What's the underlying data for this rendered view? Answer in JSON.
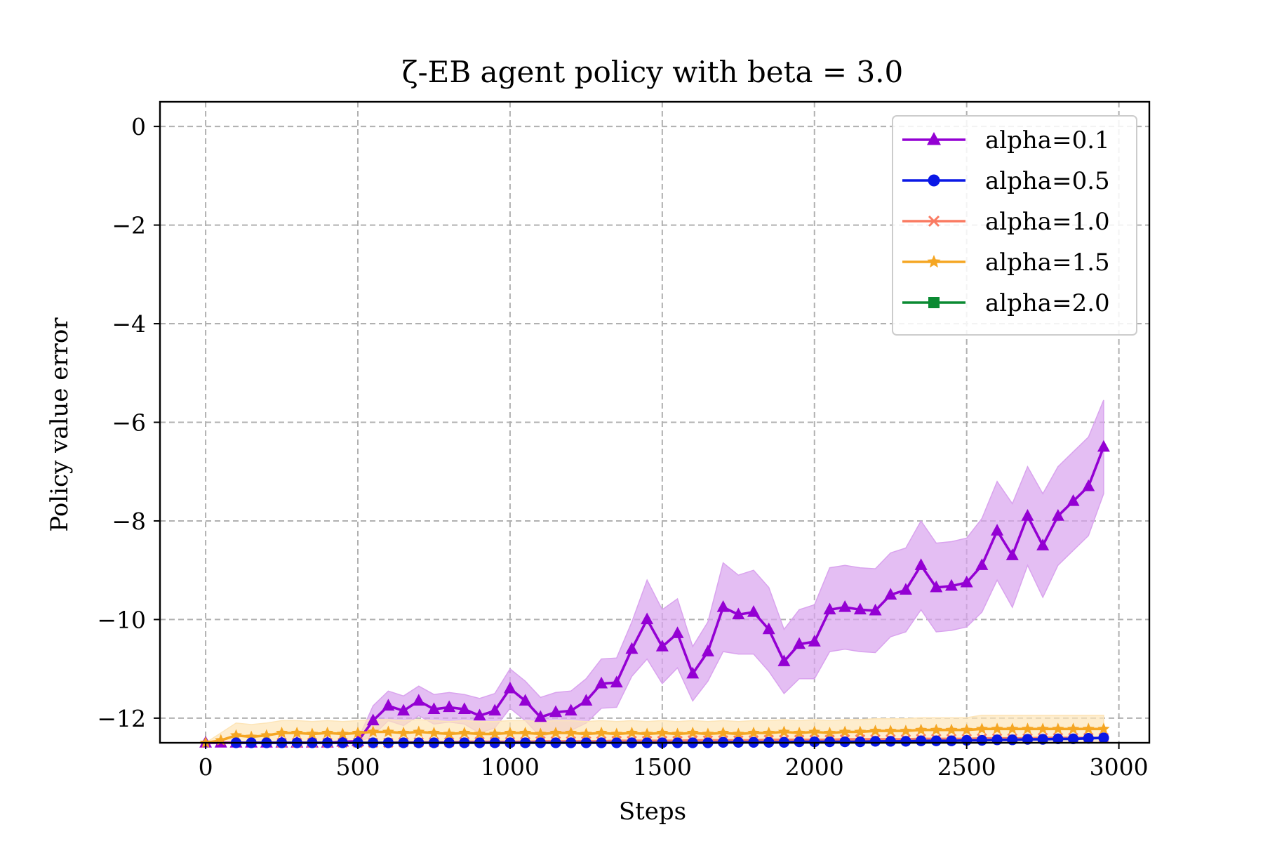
{
  "chart_data": {
    "type": "line",
    "title": "ζ-EB agent policy with beta = 3.0",
    "xlabel": "Steps",
    "ylabel": "Policy value error",
    "xlim": [
      -150,
      3100
    ],
    "ylim": [
      -12.5,
      0.5
    ],
    "xticks": [
      0,
      500,
      1000,
      1500,
      2000,
      2500,
      3000
    ],
    "xtick_labels": [
      "0",
      "500",
      "1000",
      "1500",
      "2000",
      "2500",
      "3000"
    ],
    "yticks": [
      0,
      -2,
      -4,
      -6,
      -8,
      -10,
      -12
    ],
    "ytick_labels": [
      "0",
      "−2",
      "−4",
      "−6",
      "−8",
      "−10",
      "−12"
    ],
    "grid": true,
    "legend_position": "top-right",
    "series": [
      {
        "name": "alpha=0.1",
        "color": "#9400D3",
        "marker": "triangle",
        "band_color": "#d9a3ee",
        "x": [
          0,
          50,
          100,
          150,
          200,
          250,
          300,
          350,
          400,
          450,
          500,
          550,
          600,
          650,
          700,
          750,
          800,
          850,
          900,
          950,
          1000,
          1050,
          1100,
          1150,
          1200,
          1250,
          1300,
          1350,
          1400,
          1450,
          1500,
          1550,
          1600,
          1650,
          1700,
          1750,
          1800,
          1850,
          1900,
          1950,
          2000,
          2050,
          2100,
          2150,
          2200,
          2250,
          2300,
          2350,
          2400,
          2450,
          2500,
          2550,
          2600,
          2650,
          2700,
          2750,
          2800,
          2850,
          2900,
          2950
        ],
        "values": [
          -12.55,
          -12.55,
          -12.55,
          -12.55,
          -12.55,
          -12.55,
          -12.5,
          -12.5,
          -12.5,
          -12.48,
          -12.47,
          -12.05,
          -11.75,
          -11.85,
          -11.65,
          -11.82,
          -11.78,
          -11.82,
          -11.95,
          -11.85,
          -11.4,
          -11.65,
          -11.98,
          -11.88,
          -11.85,
          -11.65,
          -11.3,
          -11.28,
          -10.6,
          -10.0,
          -10.55,
          -10.28,
          -11.1,
          -10.65,
          -9.75,
          -9.9,
          -9.85,
          -10.2,
          -10.85,
          -10.5,
          -10.45,
          -9.8,
          -9.75,
          -9.8,
          -9.82,
          -9.5,
          -9.4,
          -8.9,
          -9.35,
          -9.32,
          -9.25,
          -8.9,
          -8.2,
          -8.7,
          -7.9,
          -8.5,
          -7.9,
          -7.6,
          -7.3,
          -6.5
        ],
        "band_half_width": [
          0,
          0,
          0,
          0,
          0,
          0,
          0,
          0,
          0,
          0,
          0.03,
          0.3,
          0.3,
          0.3,
          0.3,
          0.3,
          0.3,
          0.3,
          0.35,
          0.35,
          0.4,
          0.4,
          0.4,
          0.4,
          0.4,
          0.45,
          0.5,
          0.5,
          0.55,
          0.8,
          0.75,
          0.7,
          0.55,
          0.6,
          0.9,
          0.8,
          0.85,
          0.85,
          0.65,
          0.7,
          0.75,
          0.85,
          0.85,
          0.85,
          0.85,
          0.85,
          0.85,
          0.9,
          0.9,
          0.9,
          0.9,
          0.95,
          1.0,
          1.05,
          1.0,
          1.05,
          1.0,
          1.0,
          1.0,
          0.95
        ]
      },
      {
        "name": "alpha=0.5",
        "color": "#0a18e6",
        "marker": "circle",
        "x": [
          100,
          150,
          200,
          250,
          300,
          350,
          400,
          450,
          500,
          550,
          600,
          650,
          700,
          750,
          800,
          850,
          900,
          950,
          1000,
          1050,
          1100,
          1150,
          1200,
          1250,
          1300,
          1350,
          1400,
          1450,
          1500,
          1550,
          1600,
          1650,
          1700,
          1750,
          1800,
          1850,
          1900,
          1950,
          2000,
          2050,
          2100,
          2150,
          2200,
          2250,
          2300,
          2350,
          2400,
          2450,
          2500,
          2550,
          2600,
          2650,
          2700,
          2750,
          2800,
          2850,
          2900,
          2950
        ],
        "values": [
          -12.55,
          -12.55,
          -12.54,
          -12.54,
          -12.54,
          -12.53,
          -12.53,
          -12.53,
          -12.53,
          -12.53,
          -12.52,
          -12.52,
          -12.52,
          -12.52,
          -12.52,
          -12.52,
          -12.51,
          -12.51,
          -12.51,
          -12.51,
          -12.51,
          -12.51,
          -12.51,
          -12.5,
          -12.5,
          -12.5,
          -12.5,
          -12.5,
          -12.5,
          -12.5,
          -12.5,
          -12.5,
          -12.49,
          -12.49,
          -12.49,
          -12.49,
          -12.49,
          -12.48,
          -12.48,
          -12.48,
          -12.48,
          -12.48,
          -12.47,
          -12.47,
          -12.47,
          -12.46,
          -12.46,
          -12.46,
          -12.45,
          -12.45,
          -12.44,
          -12.44,
          -12.43,
          -12.43,
          -12.42,
          -12.42,
          -12.41,
          -12.4
        ]
      },
      {
        "name": "alpha=1.0",
        "color": "#fa7b62",
        "marker": "x",
        "x": [
          250,
          300,
          350,
          400,
          450,
          500,
          550,
          600,
          650,
          700,
          750,
          800,
          850,
          900,
          950,
          1000,
          1050,
          1100,
          1150,
          1200,
          1250,
          1300,
          1350,
          1400,
          1450,
          1500,
          1550,
          1600,
          1650,
          1700,
          1750,
          1800,
          1850,
          1900,
          1950,
          2000,
          2050,
          2100,
          2150,
          2200,
          2250,
          2300,
          2350,
          2400,
          2450,
          2500,
          2550,
          2600,
          2650,
          2700,
          2750,
          2800,
          2850,
          2900,
          2950
        ],
        "values": [
          -12.53,
          -12.52,
          -12.52,
          -12.51,
          -12.51,
          -12.5,
          -12.5,
          -12.5,
          -12.49,
          -12.49,
          -12.49,
          -12.49,
          -12.48,
          -12.48,
          -12.48,
          -12.48,
          -12.48,
          -12.47,
          -12.47,
          -12.47,
          -12.47,
          -12.47,
          -12.46,
          -12.46,
          -12.46,
          -12.46,
          -12.46,
          -12.45,
          -12.45,
          -12.45,
          -12.45,
          -12.45,
          -12.44,
          -12.44,
          -12.44,
          -12.44,
          -12.44,
          -12.43,
          -12.43,
          -12.43,
          -12.43,
          -12.43,
          -12.42,
          -12.42,
          -12.42,
          -12.42,
          -12.41,
          -12.41,
          -12.41,
          -12.41,
          -12.4,
          -12.4,
          -12.4,
          -12.4,
          -12.4
        ]
      },
      {
        "name": "alpha=1.5",
        "color": "#f5a623",
        "marker": "star",
        "band_color": "#fde5b8",
        "x": [
          0,
          50,
          100,
          150,
          200,
          250,
          300,
          350,
          400,
          450,
          500,
          550,
          600,
          650,
          700,
          750,
          800,
          850,
          900,
          950,
          1000,
          1050,
          1100,
          1150,
          1200,
          1250,
          1300,
          1350,
          1400,
          1450,
          1500,
          1550,
          1600,
          1650,
          1700,
          1750,
          1800,
          1850,
          1900,
          1950,
          2000,
          2050,
          2100,
          2150,
          2200,
          2250,
          2300,
          2350,
          2400,
          2450,
          2500,
          2550,
          2600,
          2650,
          2700,
          2750,
          2800,
          2850,
          2900,
          2950
        ],
        "values": [
          -12.55,
          -12.45,
          -12.35,
          -12.38,
          -12.35,
          -12.3,
          -12.3,
          -12.32,
          -12.3,
          -12.32,
          -12.3,
          -12.28,
          -12.28,
          -12.3,
          -12.28,
          -12.3,
          -12.32,
          -12.3,
          -12.32,
          -12.32,
          -12.3,
          -12.3,
          -12.32,
          -12.3,
          -12.3,
          -12.32,
          -12.3,
          -12.32,
          -12.3,
          -12.32,
          -12.3,
          -12.32,
          -12.3,
          -12.32,
          -12.3,
          -12.32,
          -12.3,
          -12.3,
          -12.28,
          -12.3,
          -12.28,
          -12.3,
          -12.28,
          -12.28,
          -12.26,
          -12.26,
          -12.26,
          -12.24,
          -12.24,
          -12.24,
          -12.24,
          -12.22,
          -12.22,
          -12.22,
          -12.22,
          -12.22,
          -12.22,
          -12.22,
          -12.22,
          -12.22
        ],
        "band_half_width": [
          0.05,
          0.15,
          0.25,
          0.25,
          0.25,
          0.25,
          0.25,
          0.25,
          0.25,
          0.25,
          0.25,
          0.25,
          0.25,
          0.25,
          0.25,
          0.25,
          0.25,
          0.25,
          0.25,
          0.25,
          0.25,
          0.25,
          0.25,
          0.25,
          0.25,
          0.25,
          0.25,
          0.25,
          0.25,
          0.25,
          0.25,
          0.25,
          0.25,
          0.25,
          0.25,
          0.25,
          0.25,
          0.25,
          0.25,
          0.25,
          0.25,
          0.25,
          0.25,
          0.25,
          0.25,
          0.25,
          0.25,
          0.25,
          0.25,
          0.25,
          0.25,
          0.28,
          0.28,
          0.28,
          0.28,
          0.28,
          0.28,
          0.28,
          0.28,
          0.28
        ]
      },
      {
        "name": "alpha=2.0",
        "color": "#0a8a32",
        "marker": "square",
        "x": [],
        "values": []
      }
    ]
  }
}
